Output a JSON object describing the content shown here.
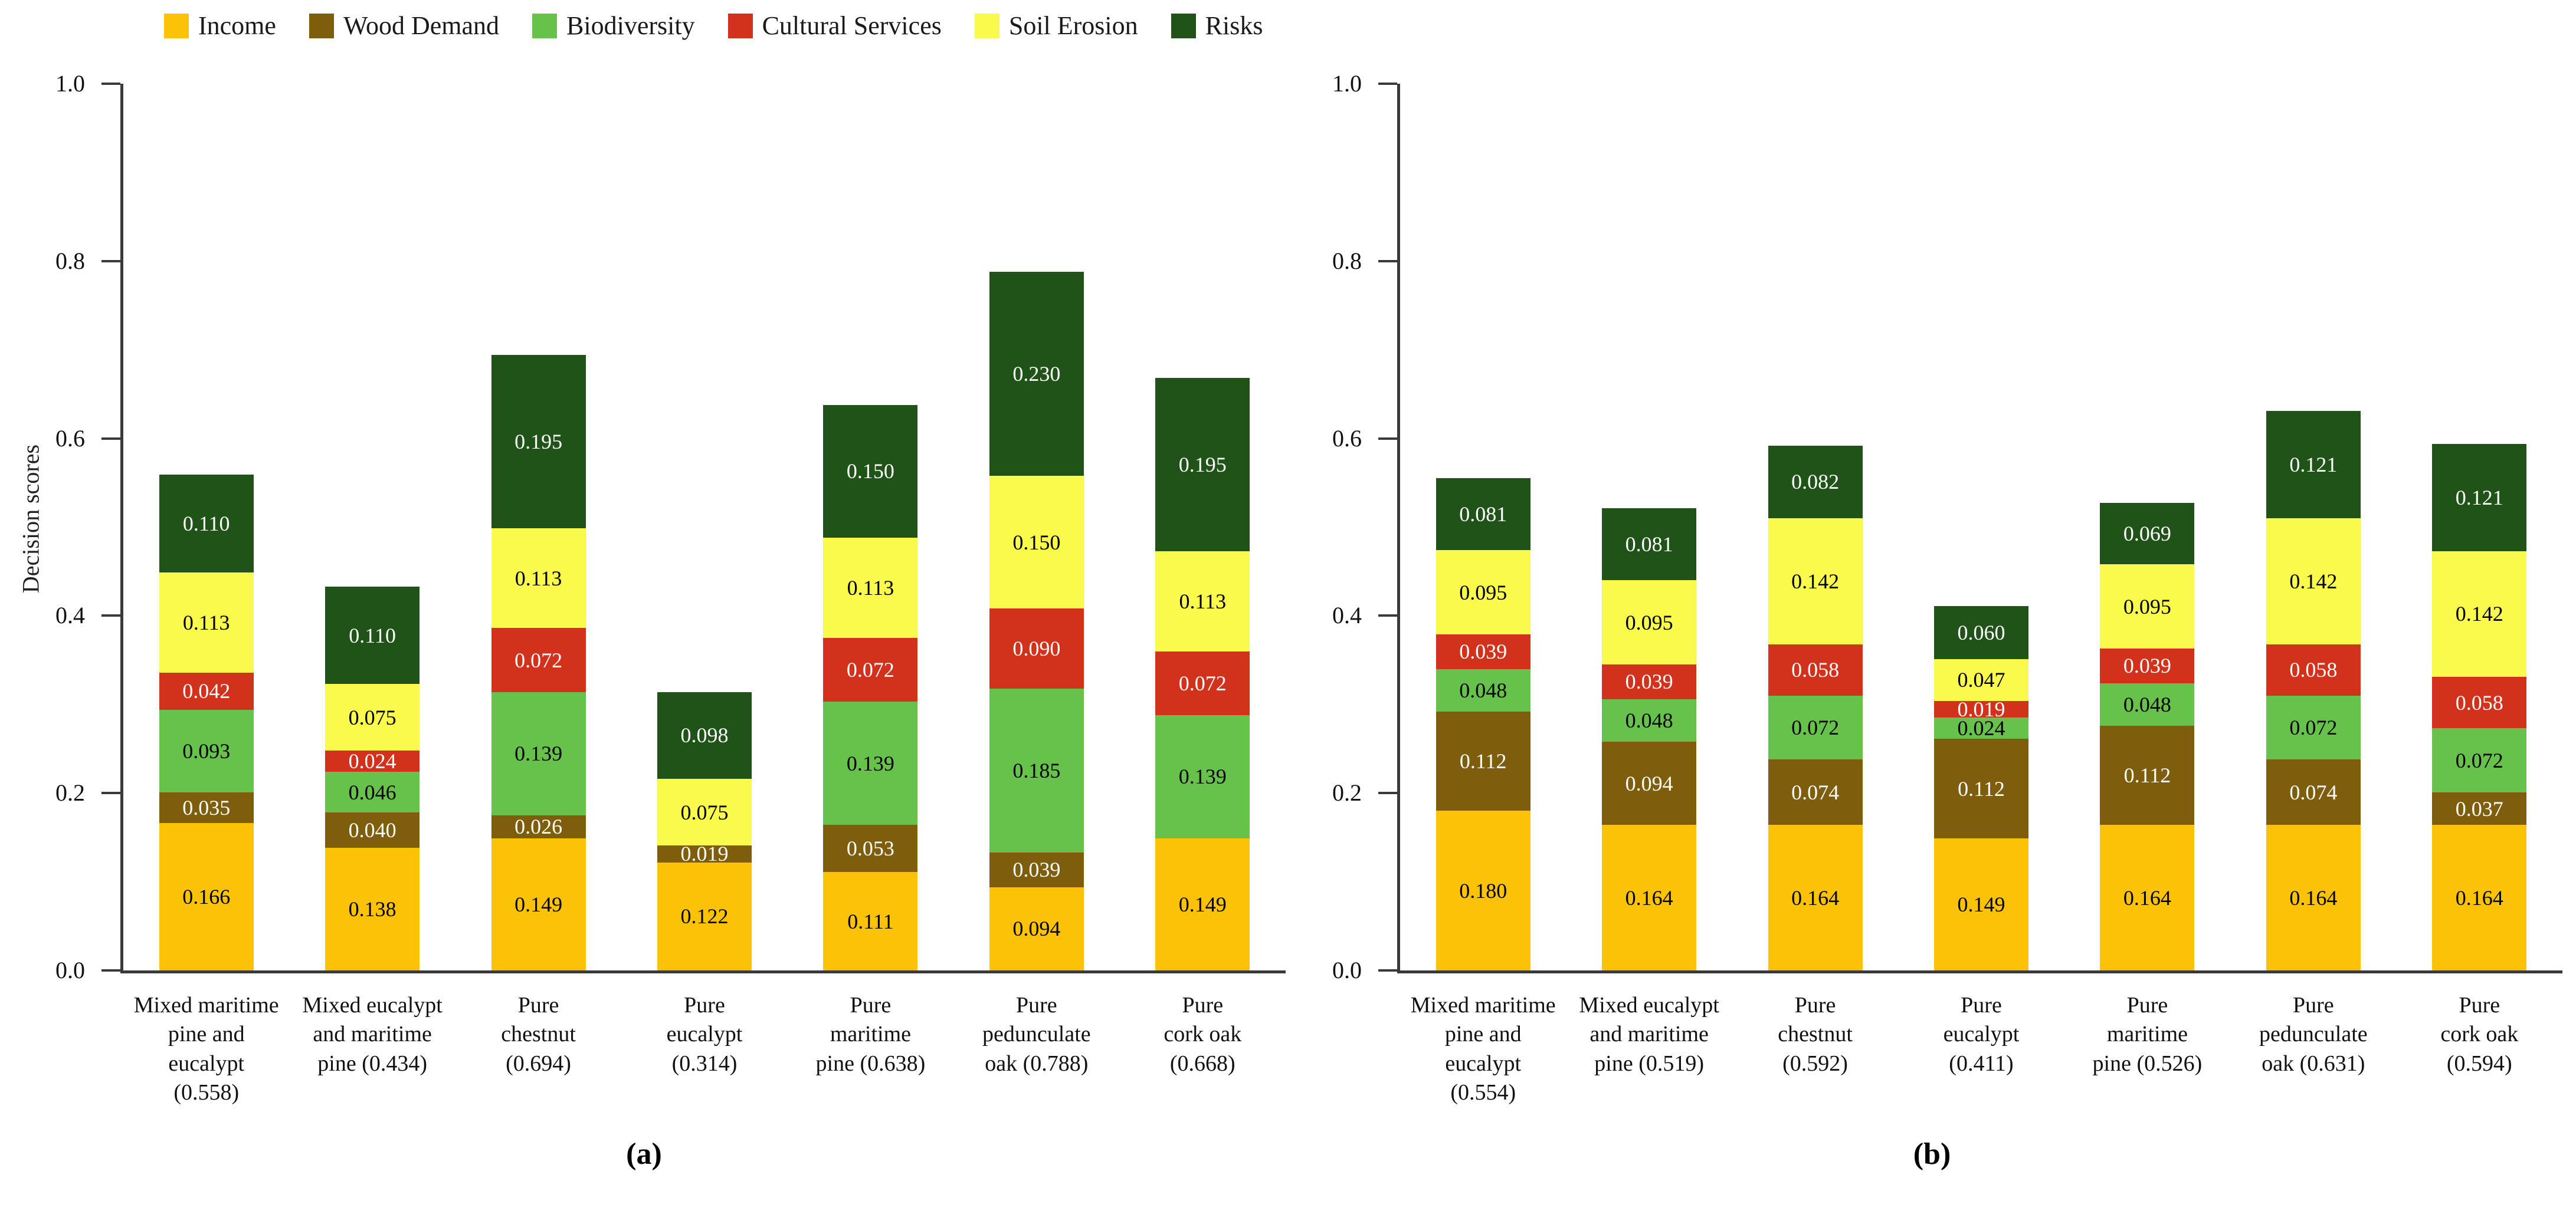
{
  "legend": {
    "items": [
      {
        "label": "Income",
        "color": "#FCC306",
        "text_color": "#000000"
      },
      {
        "label": "Wood Demand",
        "color": "#7E5E0C",
        "text_color": "#FFFFFF"
      },
      {
        "label": "Biodiversity",
        "color": "#67C24B",
        "text_color": "#000000"
      },
      {
        "label": "Cultural Services",
        "color": "#D2311B",
        "text_color": "#FFFFFF"
      },
      {
        "label": "Soil Erosion",
        "color": "#FAFA4C",
        "text_color": "#000000"
      },
      {
        "label": "Risks",
        "color": "#1F5318",
        "text_color": "#FFFFFF"
      }
    ]
  },
  "y_axis": {
    "title": "Decision scores",
    "min": 0,
    "max": 1,
    "tick_step": 0.2,
    "tick_labels": [
      "0.0",
      "0.2",
      "0.4",
      "0.6",
      "0.8",
      "1.0"
    ]
  },
  "chart_data": [
    {
      "id": "a",
      "type": "bar",
      "stacked": true,
      "caption": "(a)",
      "ylabel": "Decision scores",
      "ylim": [
        0,
        1
      ],
      "grid": false,
      "legend_position": "top-left",
      "categories": [
        "Mixed maritime pine and eucalypt (0.558)",
        "Mixed eucalypt and maritime pine (0.434)",
        "Pure chestnut (0.694)",
        "Pure eucalypt (0.314)",
        "Pure maritime pine (0.638)",
        "Pure pedunculate oak (0.788)",
        "Pure cork oak (0.668)"
      ],
      "category_lines": [
        [
          "Mixed maritime",
          "pine and",
          "eucalypt",
          "(0.558)"
        ],
        [
          "Mixed eucalypt",
          "and maritime",
          "pine (0.434)"
        ],
        [
          "Pure",
          "chestnut",
          "(0.694)"
        ],
        [
          "Pure",
          "eucalypt",
          "(0.314)"
        ],
        [
          "Pure",
          "maritime",
          "pine (0.638)"
        ],
        [
          "Pure",
          "pedunculate",
          "oak (0.788)"
        ],
        [
          "Pure",
          "cork oak",
          "(0.668)"
        ]
      ],
      "totals": [
        0.558,
        0.434,
        0.694,
        0.314,
        0.638,
        0.788,
        0.668
      ],
      "series": [
        {
          "name": "Income",
          "values": [
            0.166,
            0.138,
            0.149,
            0.122,
            0.111,
            0.094,
            0.149
          ]
        },
        {
          "name": "Wood Demand",
          "values": [
            0.035,
            0.04,
            0.026,
            0.019,
            0.053,
            0.039,
            0
          ]
        },
        {
          "name": "Biodiversity",
          "values": [
            0.093,
            0.046,
            0.139,
            0,
            0.139,
            0.185,
            0.139
          ]
        },
        {
          "name": "Cultural Services",
          "values": [
            0.042,
            0.024,
            0.072,
            0,
            0.072,
            0.09,
            0.072
          ]
        },
        {
          "name": "Soil Erosion",
          "values": [
            0.113,
            0.075,
            0.113,
            0.075,
            0.113,
            0.15,
            0.113
          ]
        },
        {
          "name": "Risks",
          "values": [
            0.11,
            0.11,
            0.195,
            0.098,
            0.15,
            0.23,
            0.195
          ]
        }
      ]
    },
    {
      "id": "b",
      "type": "bar",
      "stacked": true,
      "caption": "(b)",
      "ylabel": "",
      "ylim": [
        0,
        1
      ],
      "grid": false,
      "categories": [
        "Mixed maritime pine and eucalypt (0.554)",
        "Mixed eucalypt and maritime pine (0.519)",
        "Pure chestnut (0.592)",
        "Pure eucalypt (0.411)",
        "Pure maritime pine (0.526)",
        "Pure pedunculate oak (0.631)",
        "Pure cork oak (0.594)"
      ],
      "category_lines": [
        [
          "Mixed maritime",
          "pine and",
          "eucalypt",
          "(0.554)"
        ],
        [
          "Mixed eucalypt",
          "and maritime",
          "pine (0.519)"
        ],
        [
          "Pure",
          "chestnut",
          "(0.592)"
        ],
        [
          "Pure",
          "eucalypt",
          "(0.411)"
        ],
        [
          "Pure",
          "maritime",
          "pine (0.526)"
        ],
        [
          "Pure",
          "pedunculate",
          "oak (0.631)"
        ],
        [
          "Pure",
          "cork oak",
          "(0.594)"
        ]
      ],
      "totals": [
        0.554,
        0.519,
        0.592,
        0.411,
        0.526,
        0.631,
        0.594
      ],
      "series": [
        {
          "name": "Income",
          "values": [
            0.18,
            0.164,
            0.164,
            0.149,
            0.164,
            0.164,
            0.164
          ]
        },
        {
          "name": "Wood Demand",
          "values": [
            0.112,
            0.094,
            0.074,
            0.112,
            0.112,
            0.074,
            0.037
          ]
        },
        {
          "name": "Biodiversity",
          "values": [
            0.048,
            0.048,
            0.072,
            0.024,
            0.048,
            0.072,
            0.072
          ]
        },
        {
          "name": "Cultural Services",
          "values": [
            0.039,
            0.039,
            0.058,
            0.019,
            0.039,
            0.058,
            0.058
          ]
        },
        {
          "name": "Soil Erosion",
          "values": [
            0.095,
            0.095,
            0.142,
            0.047,
            0.095,
            0.142,
            0.142
          ]
        },
        {
          "name": "Risks",
          "values": [
            0.081,
            0.081,
            0.082,
            0.06,
            0.069,
            0.121,
            0.121
          ]
        }
      ]
    }
  ]
}
